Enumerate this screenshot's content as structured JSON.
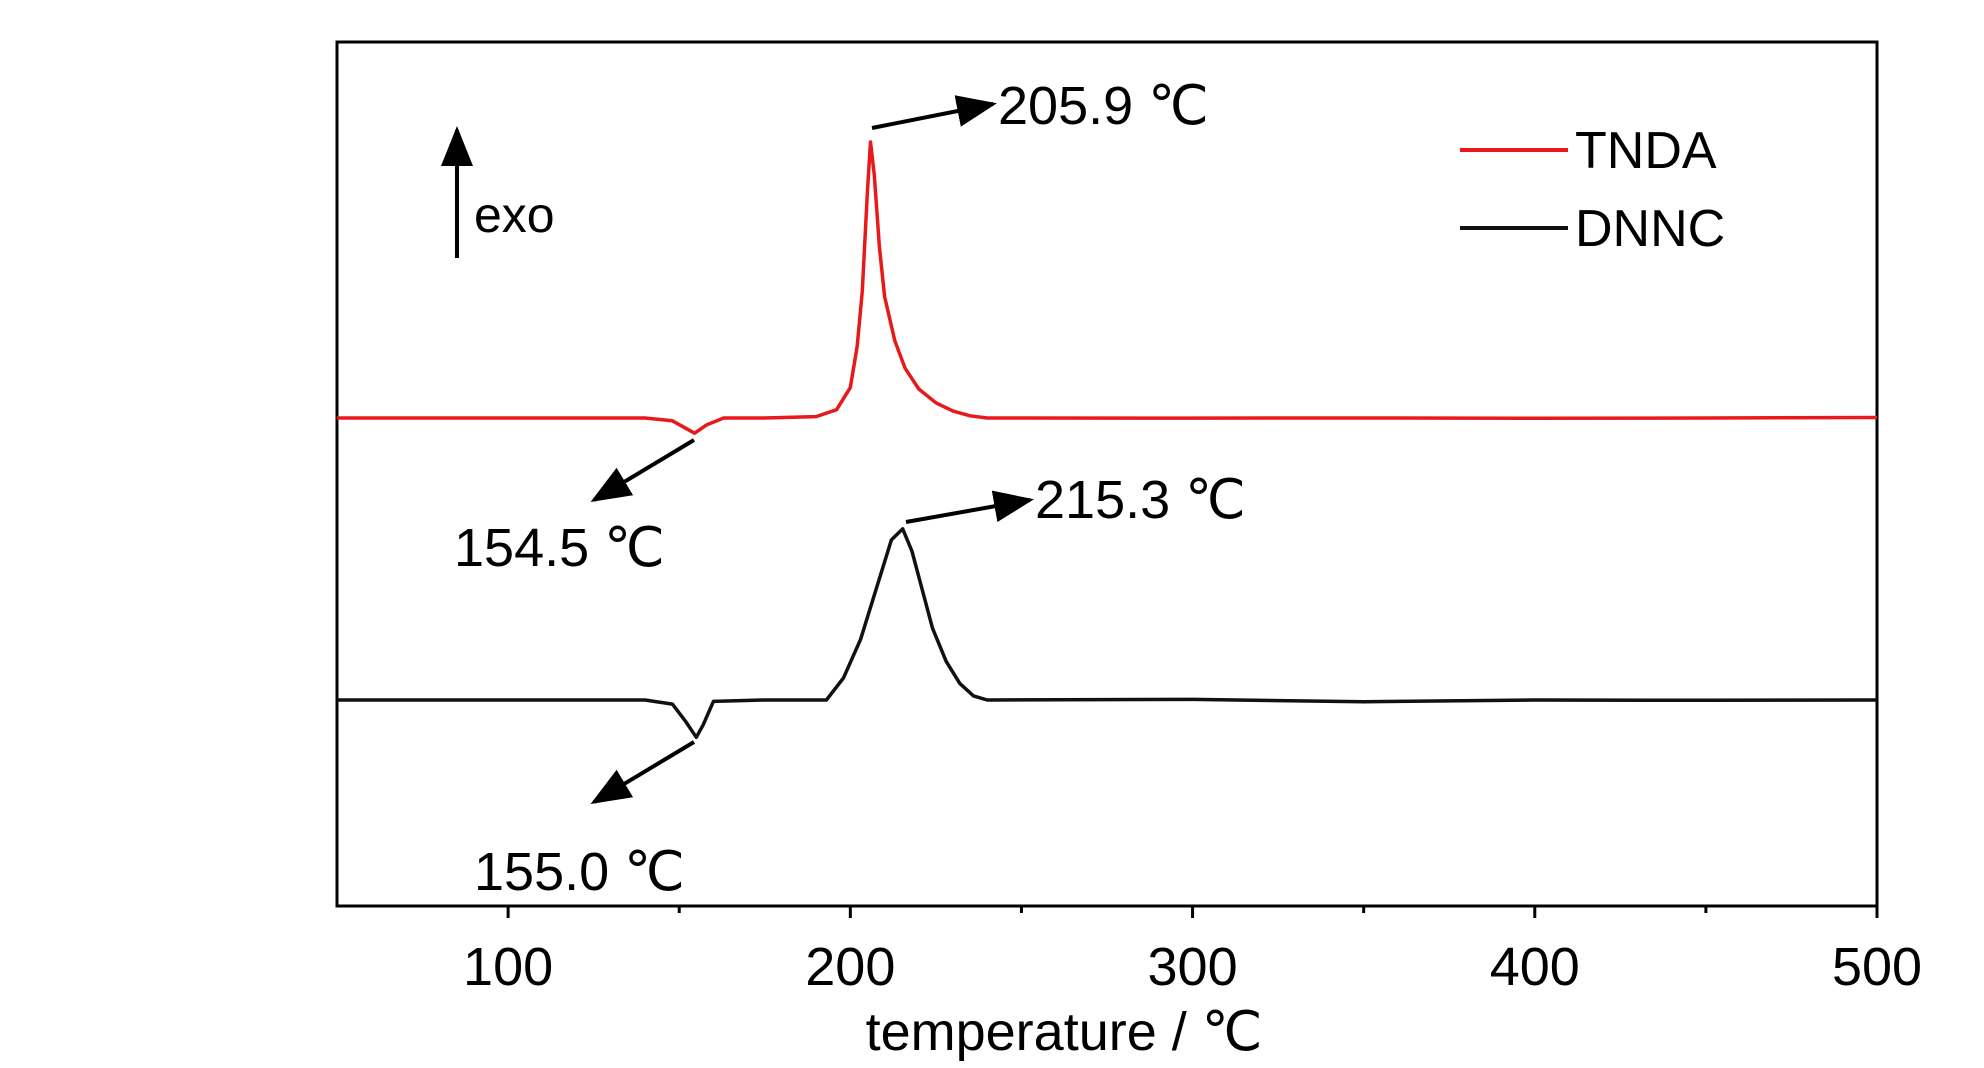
{
  "chart_data": {
    "type": "line",
    "xlabel": "temperature / ℃",
    "ylabel": "",
    "xlim": [
      50,
      500
    ],
    "xticks": [
      100,
      200,
      300,
      400,
      500
    ],
    "x_minor_ticks": [
      150,
      250,
      350,
      450
    ],
    "y_axis_labels": false,
    "legend_position": "top-right",
    "series": [
      {
        "name": "TNDA",
        "color": "#e8191a",
        "x": [
          50,
          100,
          140,
          148,
          154.5,
          158,
          163,
          175,
          190,
          196,
          200,
          202,
          203.5,
          205,
          205.9,
          207,
          208.5,
          210,
          213,
          216,
          220,
          225,
          230,
          235,
          240,
          300,
          350,
          400,
          450,
          500
        ],
        "y": [
          0,
          0,
          0,
          -0.1,
          -0.55,
          -0.25,
          0,
          0,
          0.05,
          0.3,
          1.1,
          2.6,
          4.6,
          8.2,
          10.0,
          8.8,
          6.2,
          4.4,
          2.8,
          1.8,
          1.05,
          0.55,
          0.25,
          0.08,
          0,
          0.03,
          0,
          0.02,
          0,
          0.05
        ]
      },
      {
        "name": "DNNC",
        "color": "#111111",
        "x": [
          50,
          100,
          140,
          148,
          152,
          155.0,
          157,
          160,
          175,
          193,
          198,
          203,
          208,
          212,
          215.3,
          218,
          221,
          224,
          228,
          232,
          236,
          240,
          300,
          350,
          400,
          450,
          500
        ],
        "y": [
          0,
          0,
          0,
          -0.15,
          -0.8,
          -1.35,
          -0.9,
          -0.05,
          0,
          0,
          0.8,
          2.2,
          4.2,
          5.8,
          6.2,
          5.4,
          4.0,
          2.6,
          1.4,
          0.6,
          0.15,
          0,
          0.02,
          -0.03,
          0,
          0.02,
          0
        ]
      }
    ],
    "annotations": [
      {
        "label": "exo",
        "type": "direction-arrow-up"
      },
      {
        "label": "205.9 ℃",
        "series": "TNDA",
        "x": 205.9
      },
      {
        "label": "154.5 ℃",
        "series": "TNDA",
        "x": 154.5
      },
      {
        "label": "215.3 ℃",
        "series": "DNNC",
        "x": 215.3
      },
      {
        "label": "155.0 ℃",
        "series": "DNNC",
        "x": 155.0
      }
    ]
  }
}
